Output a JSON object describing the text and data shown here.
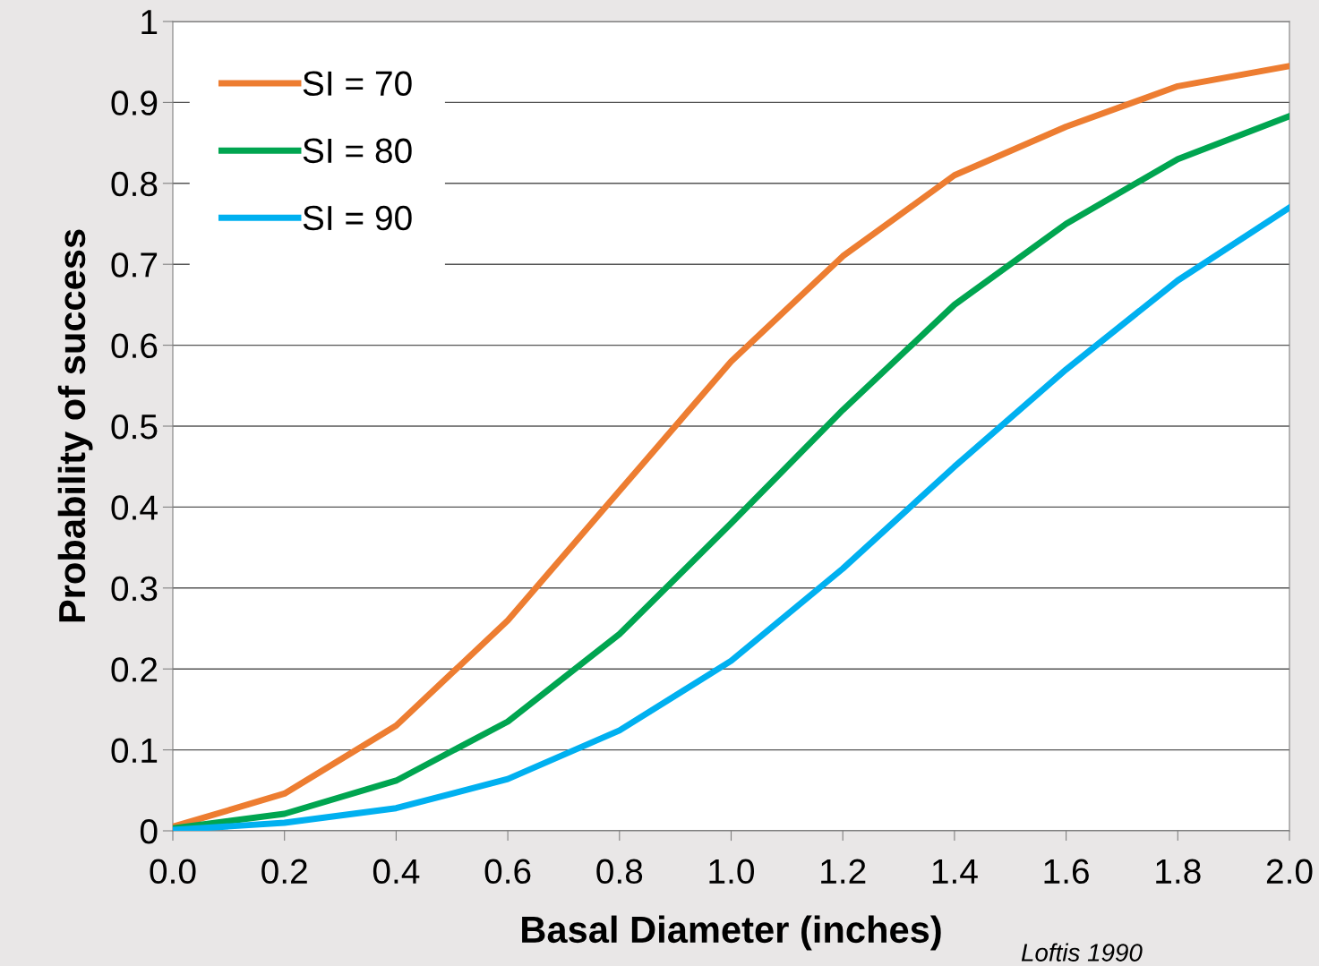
{
  "chart_data": {
    "type": "line",
    "x": [
      0.0,
      0.2,
      0.4,
      0.6,
      0.8,
      1.0,
      1.2,
      1.4,
      1.6,
      1.8,
      2.0
    ],
    "series": [
      {
        "name": "SI = 70",
        "color": "#ed7d31",
        "values": [
          0.005,
          0.046,
          0.13,
          0.26,
          0.42,
          0.58,
          0.71,
          0.81,
          0.87,
          0.92,
          0.945
        ]
      },
      {
        "name": "SI = 80",
        "color": "#00a550",
        "values": [
          0.003,
          0.021,
          0.062,
          0.135,
          0.243,
          0.38,
          0.52,
          0.65,
          0.75,
          0.83,
          0.883
        ]
      },
      {
        "name": "SI = 90",
        "color": "#00b0f0",
        "values": [
          0.001,
          0.01,
          0.028,
          0.064,
          0.124,
          0.21,
          0.324,
          0.45,
          0.57,
          0.68,
          0.77
        ]
      }
    ],
    "xlabel": "Basal Diameter (inches)",
    "ylabel": "Probability of success",
    "xlim": [
      0,
      2
    ],
    "ylim": [
      0,
      1
    ],
    "xticks": [
      {
        "value": 0,
        "label": "0.0"
      },
      {
        "value": 0.2,
        "label": "0.2"
      },
      {
        "value": 0.4,
        "label": "0.4"
      },
      {
        "value": 0.6,
        "label": "0.6"
      },
      {
        "value": 0.8,
        "label": "0.8"
      },
      {
        "value": 1.0,
        "label": "1.0"
      },
      {
        "value": 1.2,
        "label": "1.2"
      },
      {
        "value": 1.4,
        "label": "1.4"
      },
      {
        "value": 1.6,
        "label": "1.6"
      },
      {
        "value": 1.8,
        "label": "1.8"
      },
      {
        "value": 2.0,
        "label": "2.0"
      }
    ],
    "yticks": [
      0,
      0.1,
      0.2,
      0.3,
      0.4,
      0.5,
      0.6,
      0.7,
      0.8,
      0.9,
      1
    ],
    "grid": "y",
    "legend": "top left",
    "marker": "none",
    "line_style": "solid",
    "annotations": [
      "Loftis 1990"
    ]
  }
}
